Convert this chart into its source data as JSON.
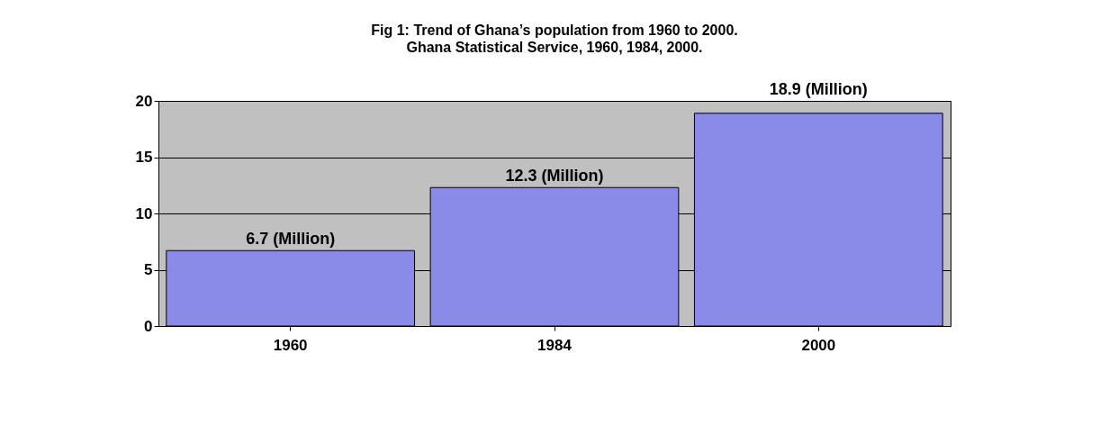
{
  "chart_data": {
    "type": "bar",
    "title": "Fig 1: Trend of Ghana’s population  from 1960 to 2000.",
    "subtitle": "Ghana Statistical Service, 1960, 1984, 2000.",
    "categories": [
      "1960",
      "1984",
      "2000"
    ],
    "values": [
      6.7,
      12.3,
      18.9
    ],
    "value_labels": [
      "6.7 (Million)",
      "12.3 (Million)",
      "18.9 (Million)"
    ],
    "color": "#8a8ae8",
    "ylim": [
      0,
      20
    ],
    "yticks": [
      0,
      5,
      10,
      15,
      20
    ],
    "grid": "y"
  }
}
